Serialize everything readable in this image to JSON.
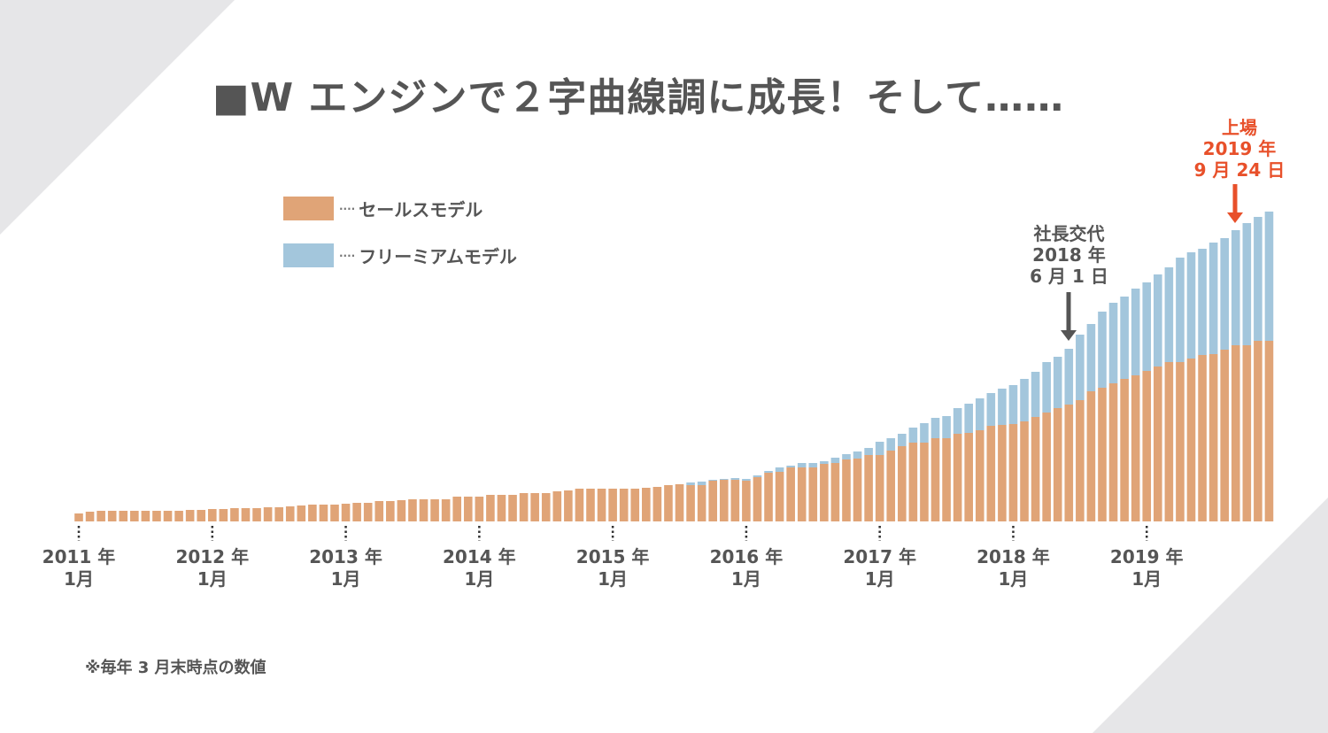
{
  "title": "■W エンジンで２字曲線調に成長！そして……",
  "legend": [
    {
      "label": "セールスモデル",
      "color": "#e0a477"
    },
    {
      "label": "フリーミアムモデル",
      "color": "#a3c6dc"
    }
  ],
  "annotations": {
    "ceo_change": {
      "line1": "社長交代",
      "line2": "2018 年",
      "line3": "6 月 1 日",
      "color": "#555555"
    },
    "ipo": {
      "line1": "上場",
      "line2": "2019 年",
      "line3": "9 月 24 日",
      "color": "#e8502a"
    }
  },
  "footnote": "※毎年 3 月末時点の数値",
  "chart_data": {
    "type": "bar",
    "stacked": true,
    "title": "■W エンジンで２字曲線調に成長！そして……",
    "xlabel": "",
    "ylabel": "",
    "x_start": "2011-01",
    "x_end": "2019-12",
    "x_step": "month",
    "x_ticks": [
      {
        "year": "2011 年",
        "month": "1月"
      },
      {
        "year": "2012 年",
        "month": "1月"
      },
      {
        "year": "2013 年",
        "month": "1月"
      },
      {
        "year": "2014 年",
        "month": "1月"
      },
      {
        "year": "2015 年",
        "month": "1月"
      },
      {
        "year": "2016 年",
        "month": "1月"
      },
      {
        "year": "2017 年",
        "month": "1月"
      },
      {
        "year": "2018 年",
        "month": "1月"
      },
      {
        "year": "2019 年",
        "month": "1月"
      }
    ],
    "y_axis_shown": false,
    "ylim": [
      0,
      360
    ],
    "legend_position": "top-left",
    "series": [
      {
        "name": "セールスモデル",
        "color": "#e0a477",
        "values": [
          9,
          11,
          12,
          12,
          12,
          12,
          12,
          12,
          12,
          12,
          13,
          13,
          14,
          14,
          15,
          15,
          15,
          16,
          16,
          17,
          18,
          19,
          19,
          19,
          20,
          21,
          21,
          23,
          23,
          24,
          25,
          25,
          25,
          25,
          28,
          28,
          28,
          30,
          30,
          30,
          32,
          32,
          32,
          34,
          35,
          37,
          37,
          37,
          37,
          37,
          37,
          38,
          39,
          41,
          42,
          41,
          41,
          46,
          47,
          47,
          46,
          50,
          55,
          56,
          61,
          61,
          61,
          65,
          66,
          70,
          71,
          75,
          75,
          80,
          85,
          89,
          89,
          94,
          94,
          99,
          100,
          103,
          108,
          109,
          110,
          113,
          118,
          123,
          128,
          132,
          137,
          147,
          151,
          156,
          161,
          165,
          170,
          175,
          180,
          180,
          184,
          188,
          189,
          194,
          199,
          199,
          204,
          204
        ]
      },
      {
        "name": "フリーミアムモデル",
        "color": "#a3c6dc",
        "values": [
          0,
          0,
          0,
          0,
          0,
          0,
          0,
          0,
          0,
          0,
          0,
          0,
          0,
          0,
          0,
          0,
          0,
          0,
          0,
          0,
          0,
          0,
          0,
          0,
          0,
          0,
          0,
          0,
          0,
          0,
          0,
          0,
          0,
          0,
          0,
          0,
          0,
          0,
          0,
          0,
          0,
          0,
          0,
          0,
          0,
          0,
          0,
          0,
          0,
          0,
          0,
          0,
          0,
          0,
          0,
          3,
          4,
          1,
          1,
          2,
          2,
          2,
          2,
          5,
          2,
          5,
          5,
          3,
          6,
          6,
          8,
          8,
          15,
          14,
          14,
          17,
          22,
          23,
          25,
          29,
          33,
          36,
          37,
          41,
          44,
          48,
          51,
          57,
          58,
          63,
          74,
          76,
          86,
          91,
          93,
          98,
          100,
          104,
          107,
          118,
          120,
          120,
          126,
          126,
          130,
          138,
          140,
          146
        ]
      }
    ],
    "events": [
      {
        "label": "社長交代 2018年6月1日",
        "x": "2018-06"
      },
      {
        "label": "上場 2019年9月24日",
        "x": "2019-09"
      }
    ]
  }
}
